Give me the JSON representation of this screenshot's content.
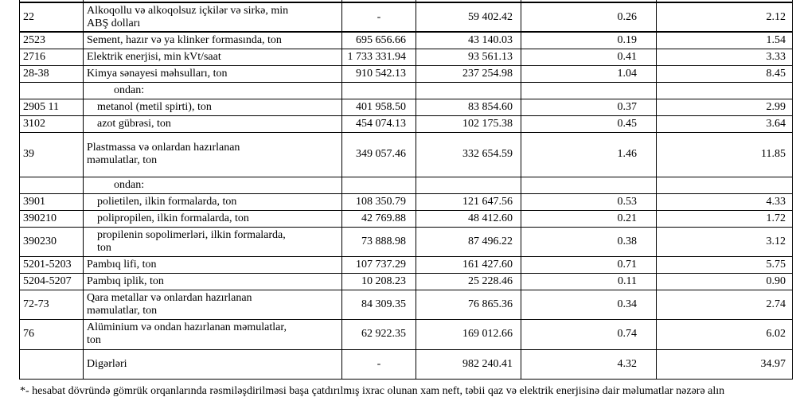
{
  "table": {
    "rows": [
      {
        "type": "item",
        "code": "22",
        "name": "Alkoqollu və alkoqolsuz içkilər və sirkə, min\nABŞ dolları",
        "qty": "-",
        "value": "59 402.42",
        "share": "0.26",
        "pct": "2.12"
      },
      {
        "type": "item",
        "code": "2523",
        "name": "Sement, hazır və ya klinker formasında, ton",
        "qty": "695 656.66",
        "value": "43 140.03",
        "share": "0.19",
        "pct": "1.54"
      },
      {
        "type": "item",
        "code": "2716",
        "name": "Elektrik enerjisi, min kVt/saat",
        "qty": "1 733 331.94",
        "value": "93 561.13",
        "share": "0.41",
        "pct": "3.33"
      },
      {
        "type": "item",
        "code": "28-38",
        "name": "Kimya sənayesi məhsulları, ton",
        "qty": "910 542.13",
        "value": "237 254.98",
        "share": "1.04",
        "pct": "8.45"
      },
      {
        "type": "subhead",
        "code": "",
        "name": "ondan:",
        "qty": "",
        "value": "",
        "share": "",
        "pct": ""
      },
      {
        "type": "subitem",
        "code": "2905 11",
        "name": "metanol (metil spirti), ton",
        "qty": "401 958.50",
        "value": "83 854.60",
        "share": "0.37",
        "pct": "2.99"
      },
      {
        "type": "subitem",
        "code": "3102",
        "name": "azot gübrəsi, ton",
        "qty": "454 074.13",
        "value": "102 175.38",
        "share": "0.45",
        "pct": "3.64"
      },
      {
        "type": "item",
        "code": "39",
        "name": "Plastmassa və onlardan hazırlanan\nməmulatlar, ton",
        "qty": "349 057.46",
        "value": "332 654.59",
        "share": "1.46",
        "pct": "11.85"
      },
      {
        "type": "subhead",
        "code": "",
        "name": "ondan:",
        "qty": "",
        "value": "",
        "share": "",
        "pct": ""
      },
      {
        "type": "subitem",
        "code": "3901",
        "name": "polietilen, ilkin formalarda, ton",
        "qty": "108 350.79",
        "value": "121 647.56",
        "share": "0.53",
        "pct": "4.33"
      },
      {
        "type": "subitem",
        "code": "390210",
        "name": "polipropilen, ilkin formalarda, ton",
        "qty": "42 769.88",
        "value": "48 412.60",
        "share": "0.21",
        "pct": "1.72"
      },
      {
        "type": "subitem",
        "code": "390230",
        "name": "propilenin sopolimerləri, ilkin formalarda,\nton",
        "qty": "73 888.98",
        "value": "87 496.22",
        "share": "0.38",
        "pct": "3.12"
      },
      {
        "type": "item",
        "code": "5201-5203",
        "name": "Pambıq lifi, ton",
        "qty": "107 737.29",
        "value": "161 427.60",
        "share": "0.71",
        "pct": "5.75"
      },
      {
        "type": "item",
        "code": "5204-5207",
        "name": "Pambıq iplik, ton",
        "qty": "10 208.23",
        "value": "25 228.46",
        "share": "0.11",
        "pct": "0.90"
      },
      {
        "type": "item",
        "code": "72-73",
        "name": "Qara metallar və onlardan hazırlanan\nməmulatlar, ton",
        "qty": "84 309.35",
        "value": "76 865.36",
        "share": "0.34",
        "pct": "2.74"
      },
      {
        "type": "item",
        "code": "76",
        "name": "Alüminium və ondan hazırlanan məmulatlar,\nton",
        "qty": "62 922.35",
        "value": "169 012.66",
        "share": "0.74",
        "pct": "6.02"
      },
      {
        "type": "item",
        "code": "",
        "name": "Digərləri",
        "qty": "-",
        "value": "982 240.41",
        "share": "4.32",
        "pct": "34.97"
      }
    ]
  },
  "footnote": "*- hesabat dövründə gömrük orqanlarında rəsmiləşdirilməsi başa çatdırılmış ixrac olunan xam neft, təbii qaz və elektrik enerjisinə dair məlumatlar nəzərə alın"
}
